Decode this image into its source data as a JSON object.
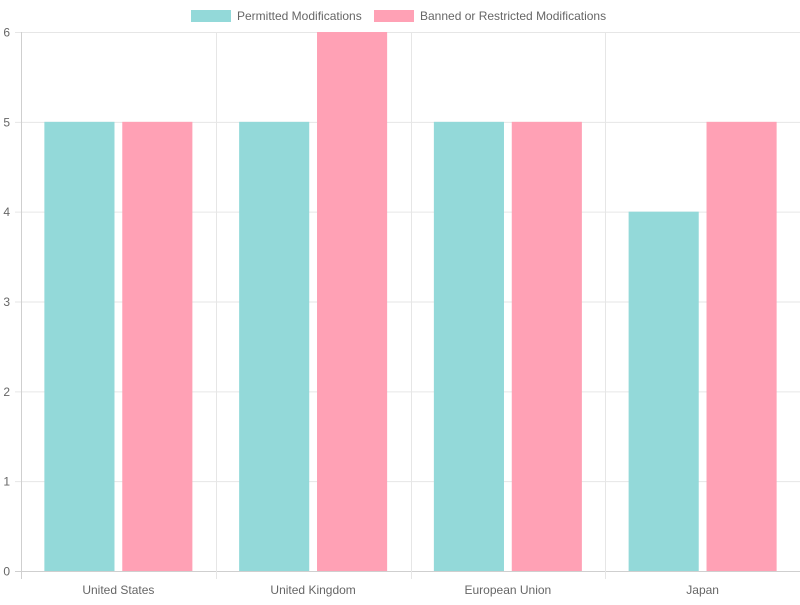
{
  "chart_data": {
    "type": "bar",
    "title": "",
    "xlabel": "",
    "ylabel": "",
    "categories": [
      "United States",
      "United Kingdom",
      "European Union",
      "Japan"
    ],
    "series": [
      {
        "name": "Permitted Modifications",
        "values": [
          5,
          5,
          5,
          4
        ],
        "color": "#93d9d9"
      },
      {
        "name": "Banned or Restricted Modifications",
        "values": [
          5,
          6,
          5,
          5
        ],
        "color": "#ffa1b5"
      }
    ],
    "ylim": [
      0,
      6
    ],
    "yticks": [
      "0",
      "1",
      "2",
      "3",
      "4",
      "5",
      "6"
    ],
    "grid": true,
    "legend_position": "top"
  }
}
